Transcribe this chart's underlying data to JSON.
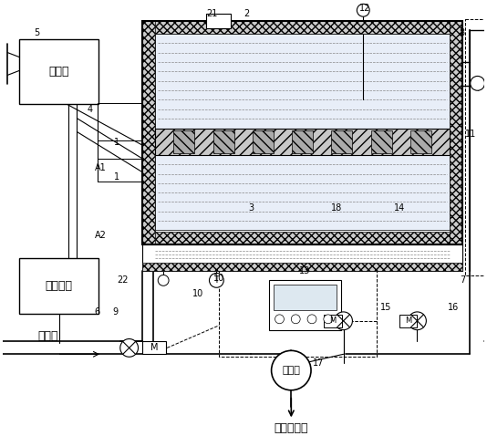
{
  "bg_color": "#ffffff",
  "labels": {
    "battery": "蓄电池",
    "device": "用电设备",
    "tap_water": "自来水",
    "mixing_valve": "混水阀",
    "hot_water": "生活用热水"
  }
}
